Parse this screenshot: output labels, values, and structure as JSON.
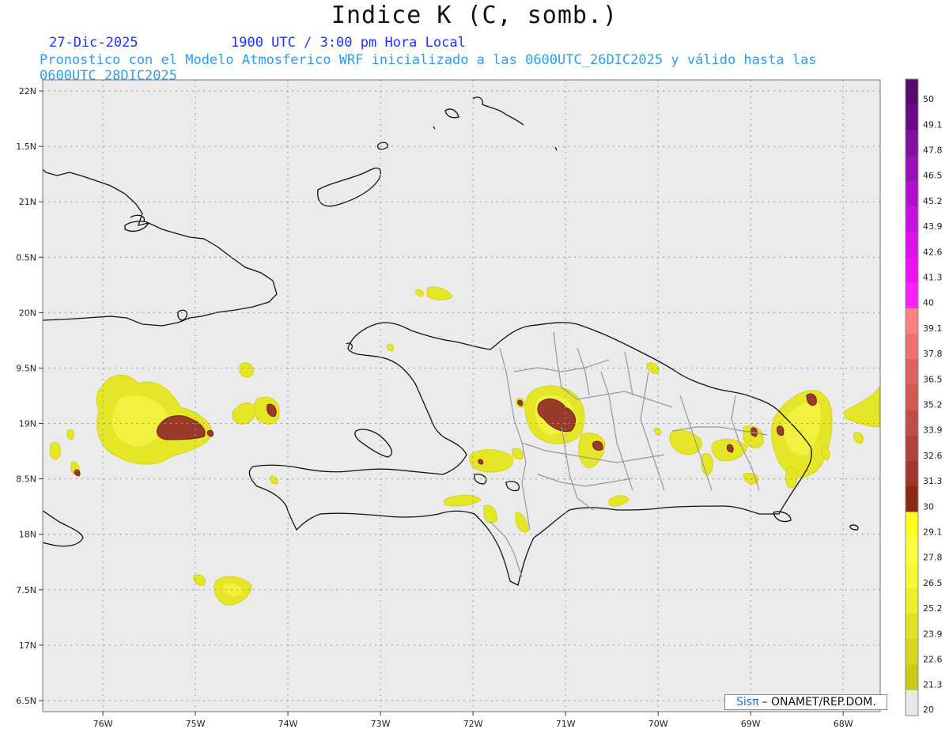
{
  "title": "Indice K (C, somb.)",
  "date_label": "27-Dic-2025",
  "time_label": "1900 UTC / 3:00 pm Hora Local",
  "description": "Pronostico con el Modelo Atmosferico WRF inicializado a las 0600UTC_26DIC2025 y válido hasta las  0600UTC_28DIC2025",
  "credit": {
    "brand": "Sisπ",
    "org": "– ONAMET/REP.DOM."
  },
  "map": {
    "lon_ticks": [
      "76W",
      "75W",
      "74W",
      "73W",
      "72W",
      "71W",
      "70W",
      "69W",
      "68W"
    ],
    "lon_values": [
      -76,
      -75,
      -74,
      -73,
      -72,
      -71,
      -70,
      -69,
      -68
    ],
    "lat_ticks": [
      "22N",
      "1.5N",
      "21N",
      "0.5N",
      "20N",
      "9.5N",
      "19N",
      "8.5N",
      "18N",
      "7.5N",
      "17N",
      "6.5N"
    ],
    "lat_values": [
      22,
      21.5,
      21,
      20.5,
      20,
      19.5,
      19,
      18.5,
      18,
      17.5,
      17,
      16.5
    ],
    "lon_range": [
      -76.65,
      -67.6
    ],
    "lat_range": [
      16.4,
      22.1
    ],
    "background_color": "#ebebeb"
  },
  "legend": {
    "labels": [
      "50",
      "49.1",
      "47.8",
      "46.5",
      "45.2",
      "43.9",
      "42.6",
      "41.3",
      "40",
      "39.1",
      "37.8",
      "36.5",
      "35.2",
      "33.9",
      "32.6",
      "31.3",
      "30",
      "29.1",
      "27.8",
      "26.5",
      "25.2",
      "23.9",
      "22.6",
      "21.3",
      "20"
    ],
    "colors": [
      "#5a0a6e",
      "#6a0a86",
      "#80109e",
      "#9810b6",
      "#b010ce",
      "#c810e0",
      "#dc10ec",
      "#f010f8",
      "#ff20ff",
      "#ff8080",
      "#f07070",
      "#e06060",
      "#d05a50",
      "#c04e44",
      "#b04238",
      "#a0362a",
      "#8a2a14",
      "#ffff20",
      "#ffff40",
      "#f8f830",
      "#eeee2a",
      "#e2e224",
      "#d6d61e",
      "#caca18",
      "#bebe14"
    ]
  },
  "contours": [
    {
      "lon": -75.3,
      "lat": 19.0,
      "level": 26
    },
    {
      "lon": -75.05,
      "lat": 18.97,
      "level": 32
    },
    {
      "lon": -71.1,
      "lat": 19.1,
      "level": 26
    },
    {
      "lon": -71.05,
      "lat": 19.1,
      "level": 32
    },
    {
      "lon": -68.35,
      "lat": 19.05,
      "level": 26
    },
    {
      "lon": -68.35,
      "lat": 19.25,
      "level": 32
    }
  ]
}
